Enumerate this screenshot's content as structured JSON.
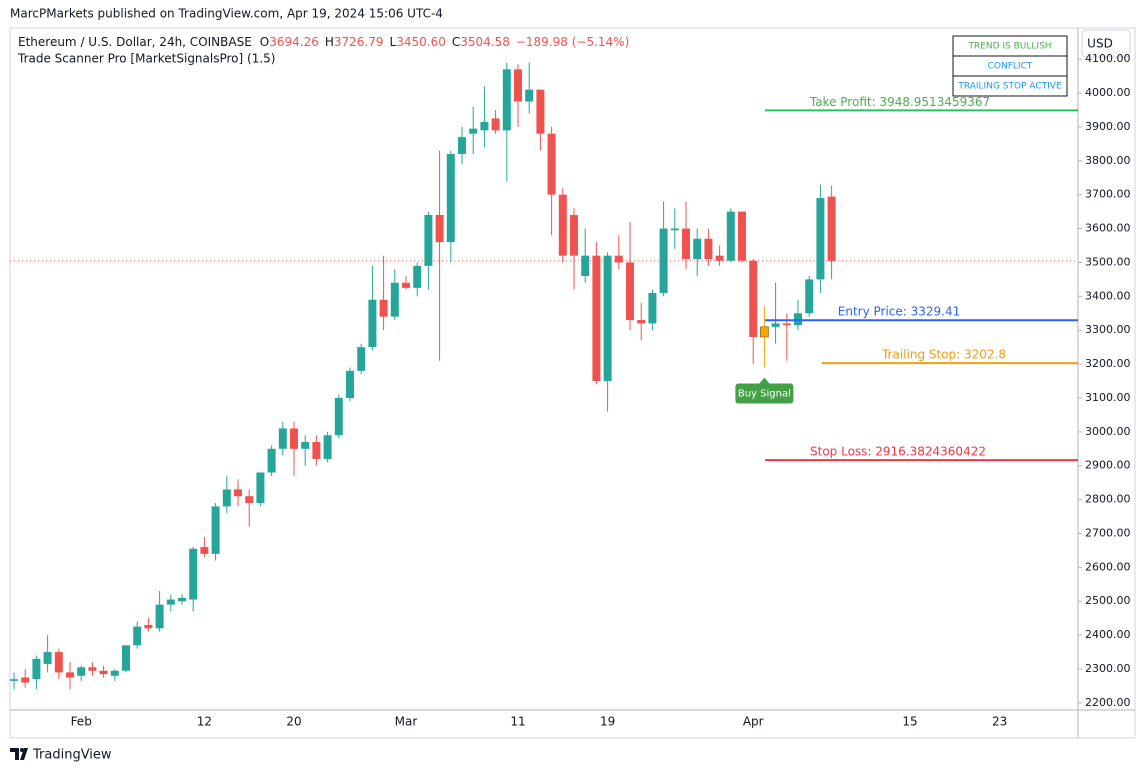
{
  "header": {
    "published": "MarcPMarkets published on TradingView.com, Apr 19, 2024 15:06 UTC-4"
  },
  "footer": {
    "brand": "TradingView"
  },
  "currency_button": "USD",
  "status_table": [
    {
      "text": "TREND IS BULLISH",
      "color": "#4caf50"
    },
    {
      "text": "CONFLICT",
      "color": "#2196f3"
    },
    {
      "text": "TRAILING STOP ACTIVE",
      "color": "#2196f3"
    }
  ],
  "chart_data": {
    "type": "candlestick",
    "title": "Ethereum / U.S. Dollar, 24h, COINBASE",
    "indicator": "Trade Scanner Pro [MarketSignalsPro] (1.5)",
    "ohlc_prefixes": [
      "O",
      "H",
      "L",
      "C"
    ],
    "ohlc_labels": [
      "3694.26",
      "3726.79",
      "3450.60",
      "3504.58"
    ],
    "change": "−189.98 (−5.14%)",
    "categories": [
      null,
      null,
      null,
      null,
      null,
      null,
      "Feb",
      null,
      null,
      null,
      null,
      null,
      null,
      null,
      null,
      null,
      null,
      "12",
      null,
      null,
      null,
      null,
      null,
      null,
      null,
      "20",
      null,
      null,
      null,
      null,
      null,
      null,
      null,
      null,
      null,
      "Mar",
      null,
      null,
      null,
      null,
      null,
      null,
      null,
      null,
      null,
      "11",
      null,
      null,
      null,
      null,
      null,
      null,
      null,
      "19",
      null,
      null,
      null,
      null,
      null,
      null,
      null,
      null,
      null,
      null,
      null,
      null,
      "Apr",
      null,
      null,
      null,
      null,
      null,
      null,
      null,
      null,
      null,
      null,
      null,
      null,
      null,
      "15",
      null,
      null,
      null,
      null,
      null,
      null,
      null,
      "23",
      null,
      null,
      null,
      null,
      null,
      null,
      null
    ],
    "open": [
      2265,
      2275,
      2270,
      2315,
      2350,
      2290,
      2280,
      2305,
      2295,
      2280,
      2295,
      2370,
      2430,
      2420,
      2490,
      2500,
      2505,
      2660,
      2640,
      2780,
      2830,
      2810,
      2790,
      2880,
      2950,
      3010,
      2950,
      2970,
      2920,
      2990,
      3100,
      3180,
      3250,
      3390,
      3340,
      3440,
      3425,
      3490,
      3640,
      3560,
      3820,
      3880,
      3890,
      3925,
      3890,
      4070,
      3975,
      4010,
      3880,
      3700,
      3640,
      3460,
      3520,
      3150,
      3520,
      3500,
      3330,
      3320,
      3410,
      3595,
      3600,
      3510,
      3570,
      3520,
      3505,
      3650,
      3505,
      3280,
      3310,
      3320,
      3315,
      3350,
      3450,
      3694.26,
      null,
      null,
      null,
      null,
      null,
      null,
      null,
      null,
      null,
      null,
      null,
      null,
      null,
      null,
      null,
      null,
      null,
      null,
      null,
      null,
      null,
      null
    ],
    "high": [
      2290,
      2300,
      2340,
      2400,
      2360,
      2320,
      2310,
      2320,
      2310,
      2300,
      2370,
      2440,
      2450,
      2530,
      2520,
      2520,
      2660,
      2690,
      2790,
      2870,
      2860,
      2830,
      2880,
      2960,
      3030,
      3030,
      2990,
      2990,
      3000,
      3110,
      3190,
      3260,
      3490,
      3520,
      3480,
      3460,
      3500,
      3650,
      3830,
      3830,
      3900,
      3960,
      4020,
      3950,
      4090,
      4085,
      4090,
      4010,
      3900,
      3720,
      3660,
      3600,
      3560,
      3530,
      3580,
      3620,
      3380,
      3420,
      3680,
      3660,
      3680,
      3600,
      3600,
      3550,
      3660,
      3650,
      3510,
      3370,
      3440,
      3350,
      3390,
      3460,
      3730,
      3726.79,
      null,
      null,
      null,
      null,
      null,
      null,
      null,
      null,
      null,
      null,
      null,
      null,
      null,
      null,
      null,
      null,
      null,
      null,
      null,
      null,
      null,
      null
    ],
    "low": [
      2240,
      2245,
      2240,
      2290,
      2270,
      2240,
      2265,
      2280,
      2275,
      2265,
      2290,
      2360,
      2410,
      2410,
      2470,
      2490,
      2470,
      2630,
      2620,
      2760,
      2780,
      2720,
      2780,
      2870,
      2930,
      2870,
      2900,
      2900,
      2910,
      2980,
      3090,
      3170,
      3240,
      3300,
      3330,
      3420,
      3400,
      3420,
      3210,
      3500,
      3790,
      3820,
      3840,
      3880,
      3740,
      3900,
      3940,
      3830,
      3580,
      3500,
      3420,
      3440,
      3140,
      3060,
      3480,
      3300,
      3270,
      3300,
      3400,
      3540,
      3480,
      3460,
      3490,
      3490,
      3500,
      3500,
      3200,
      3190,
      3260,
      3210,
      3300,
      3340,
      3410,
      3450.6,
      null,
      null,
      null,
      null,
      null,
      null,
      null,
      null,
      null,
      null,
      null,
      null,
      null,
      null,
      null,
      null,
      null,
      null,
      null,
      null,
      null,
      null
    ],
    "close": [
      2270,
      2260,
      2330,
      2350,
      2290,
      2275,
      2305,
      2295,
      2285,
      2295,
      2370,
      2425,
      2420,
      2490,
      2505,
      2510,
      2655,
      2640,
      2780,
      2830,
      2810,
      2790,
      2880,
      2950,
      3010,
      2950,
      2970,
      2920,
      2990,
      3100,
      3180,
      3250,
      3390,
      3340,
      3440,
      3425,
      3490,
      3640,
      3560,
      3820,
      3870,
      3895,
      3915,
      3890,
      4070,
      3975,
      4010,
      3880,
      3700,
      3520,
      3520,
      3520,
      3150,
      3520,
      3500,
      3330,
      3320,
      3410,
      3600,
      3600,
      3510,
      3570,
      3510,
      3505,
      3650,
      3505,
      3280,
      3310,
      3320,
      3315,
      3350,
      3450,
      3690,
      3504.58,
      null,
      null,
      null,
      null,
      null,
      null,
      null,
      null,
      null,
      null,
      null,
      null,
      null,
      null,
      null,
      null,
      null,
      null,
      null,
      null,
      null,
      null
    ],
    "up_color": "#26a69a",
    "down_color": "#ef5350",
    "signal": {
      "text": "Buy Signal",
      "index": 67,
      "color": "#f7a600",
      "label_color": "#43a047"
    },
    "levels": [
      {
        "label": "Take Profit: 3948.9513459367",
        "value": 3948.9513459367,
        "color": "#22c55e",
        "text_color": "#4caf50"
      },
      {
        "label": "Entry Price: 3329.41",
        "value": 3329.41,
        "color": "#2962ff",
        "text_color": "#2962ff"
      },
      {
        "label": "Trailing Stop: 3202.8",
        "value": 3202.8,
        "color": "#f59e0b",
        "text_color": "#f39c12"
      },
      {
        "label": "Stop Loss: 2916.3824360422",
        "value": 2916.3824360422,
        "color": "#f23645",
        "text_color": "#f23645"
      }
    ],
    "ylim": [
      2179,
      4192
    ],
    "yticks": [
      {
        "value": 2200,
        "label": "2200.00"
      },
      {
        "value": 2300,
        "label": "2300.00"
      },
      {
        "value": 2400,
        "label": "2400.00"
      },
      {
        "value": 2500,
        "label": "2500.00"
      },
      {
        "value": 2600,
        "label": "2600.00"
      },
      {
        "value": 2700,
        "label": "2700.00"
      },
      {
        "value": 2800,
        "label": "2800.00"
      },
      {
        "value": 2900,
        "label": "2900.00"
      },
      {
        "value": 3000,
        "label": "3000.00"
      },
      {
        "value": 3100,
        "label": "3100.00"
      },
      {
        "value": 3200,
        "label": "3200.00"
      },
      {
        "value": 3300,
        "label": "3300.00"
      },
      {
        "value": 3400,
        "label": "3400.00"
      },
      {
        "value": 3500,
        "label": "3500.00"
      },
      {
        "value": 3600,
        "label": "3600.00"
      },
      {
        "value": 3700,
        "label": "3700.00"
      },
      {
        "value": 3800,
        "label": "3800.00"
      },
      {
        "value": 3900,
        "label": "3900.00"
      },
      {
        "value": 4000,
        "label": "4000.00"
      },
      {
        "value": 4100,
        "label": "4100.00"
      }
    ],
    "grid": false
  }
}
